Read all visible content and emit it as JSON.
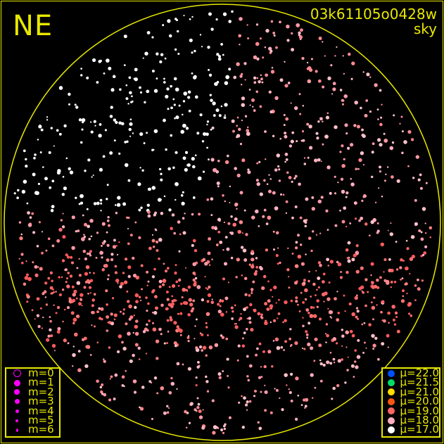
{
  "frame_id": "03k61105o0428w",
  "frame_type": "sky",
  "orientation_label": "NE",
  "border_color": "#e8e800",
  "magnitude_legend": [
    {
      "label": "m=0",
      "color": "#ff00ff",
      "hollow": true
    },
    {
      "label": "m=1",
      "color": "#ff00ff"
    },
    {
      "label": "m=2",
      "color": "#ff00ff"
    },
    {
      "label": "m=3",
      "color": "#ff00ff"
    },
    {
      "label": "m=4",
      "color": "#ff00ff"
    },
    {
      "label": "m=5",
      "color": "#ff00ff"
    },
    {
      "label": "m=6",
      "color": "#ff00ff"
    }
  ],
  "surface_brightness_legend": [
    {
      "label": "μ=22.0",
      "color": "#0050ff"
    },
    {
      "label": "μ=21.5",
      "color": "#00dd66"
    },
    {
      "label": "μ=21.0",
      "color": "#ffdd00"
    },
    {
      "label": "μ=20.0",
      "color": "#ff5511"
    },
    {
      "label": "μ=19.0",
      "color": "#ff6666"
    },
    {
      "label": "μ=18.0",
      "color": "#ffb0c0"
    },
    {
      "label": "μ=17.0",
      "color": "#ffffff"
    }
  ]
}
